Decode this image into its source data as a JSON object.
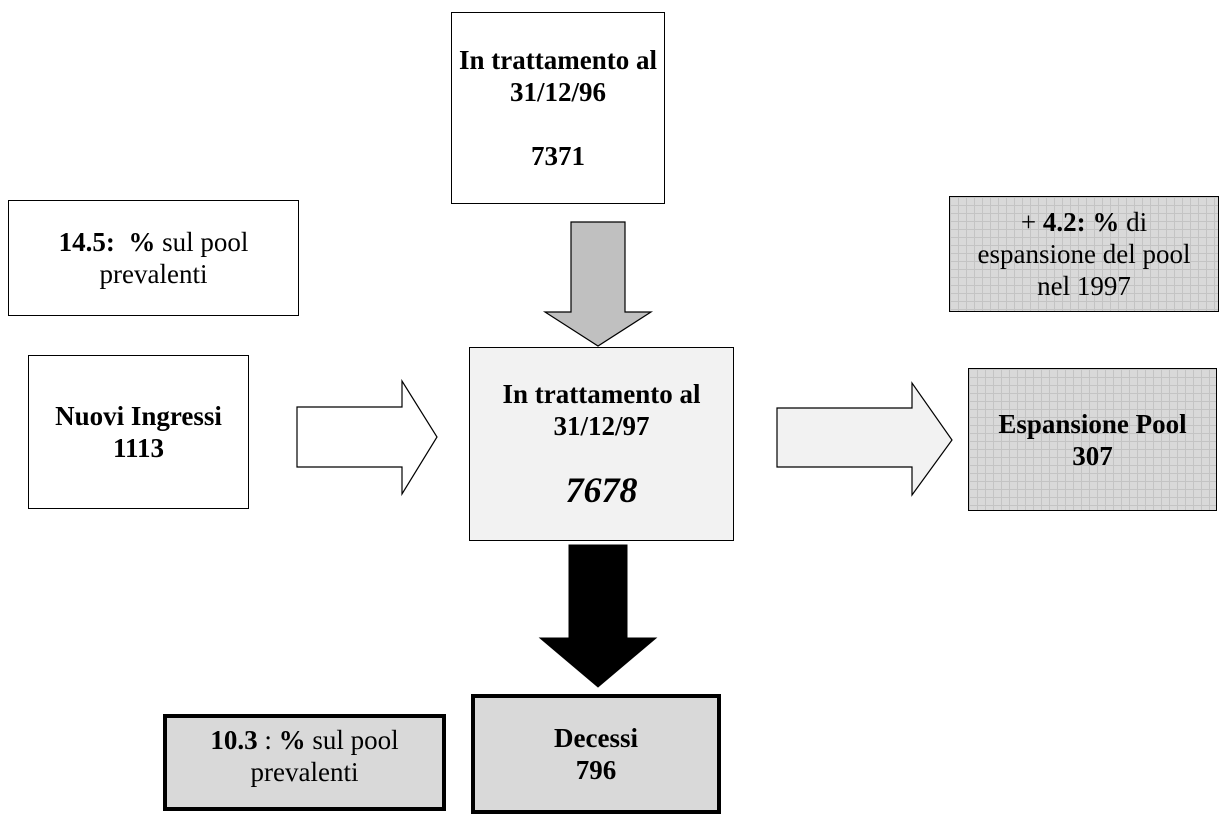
{
  "start_box": {
    "lines": [
      "In trattamento al",
      "31/12/96"
    ],
    "value": "7371"
  },
  "inflow_note": {
    "value": "14.5:",
    "unit": "%",
    "text": "sul pool",
    "text2": "prevalenti"
  },
  "growth_note": {
    "sign": "+",
    "value": "4.2: %",
    "text": "di",
    "lines": [
      "espansione del pool",
      "nel 1997"
    ]
  },
  "inflow_box": {
    "label": "Nuovi Ingressi",
    "value": "1113"
  },
  "end_box": {
    "lines": [
      "In trattamento al",
      "31/12/97"
    ],
    "value": "7678"
  },
  "growth_box": {
    "label": "Espansione Pool",
    "value": "307"
  },
  "deaths_note": {
    "value": "10.3",
    "sep": ":",
    "unit": "%",
    "text": "sul pool",
    "text2": "prevalenti"
  },
  "deaths_box": {
    "label": "Decessi",
    "value": "796"
  }
}
